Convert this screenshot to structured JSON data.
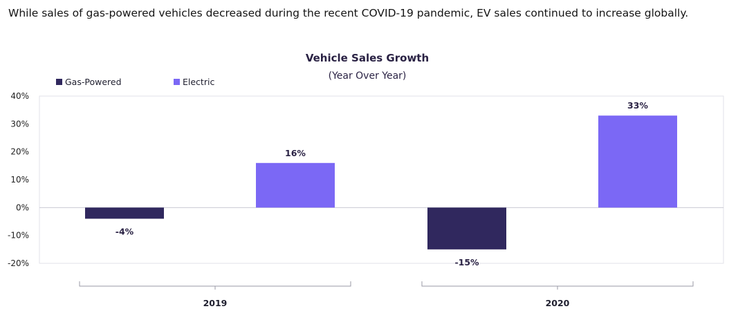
{
  "headline": "While sales of gas-powered vehicles decreased during the recent COVID-19 pandemic, EV sales continued to increase globally.",
  "chart_data": {
    "type": "bar",
    "title": "Vehicle Sales Growth",
    "subtitle": "(Year Over Year)",
    "categories": [
      "2019",
      "2020"
    ],
    "series": [
      {
        "name": "Gas-Powered",
        "values": [
          -4,
          -15
        ],
        "labels": [
          "-4%",
          "-15%"
        ],
        "color": "#30285e"
      },
      {
        "name": "Electric",
        "values": [
          16,
          33
        ],
        "labels": [
          "16%",
          "33%"
        ],
        "color": "#7b68f5"
      }
    ],
    "ylim": [
      -20,
      40
    ],
    "yticks": [
      40,
      30,
      20,
      10,
      0,
      -10,
      -20
    ],
    "ytick_labels": [
      "40%",
      "30%",
      "20%",
      "10%",
      "0%",
      "-10%",
      "-20%"
    ],
    "legend_position": "top-left",
    "grid": false
  }
}
